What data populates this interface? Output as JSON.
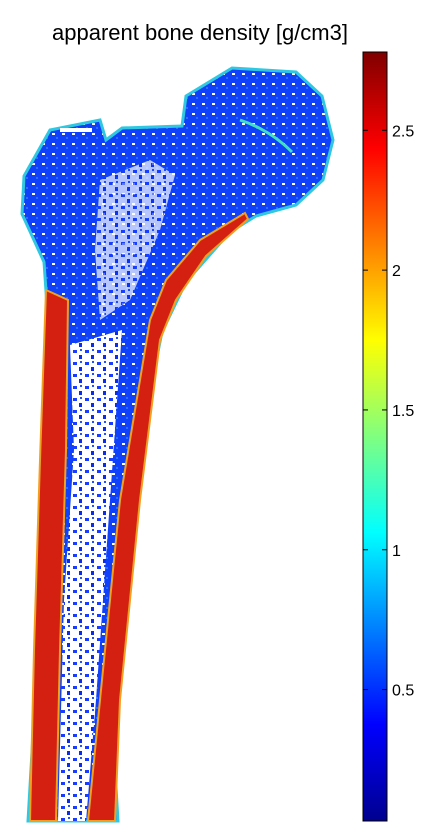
{
  "chart_data": {
    "type": "heatmap",
    "title": "apparent bone density [g/cm3]",
    "colorbar": {
      "colormap": "jet",
      "clim": [
        0.03,
        2.78
      ],
      "ticks": [
        0.5,
        1,
        1.5,
        2,
        2.5
      ]
    }
  }
}
